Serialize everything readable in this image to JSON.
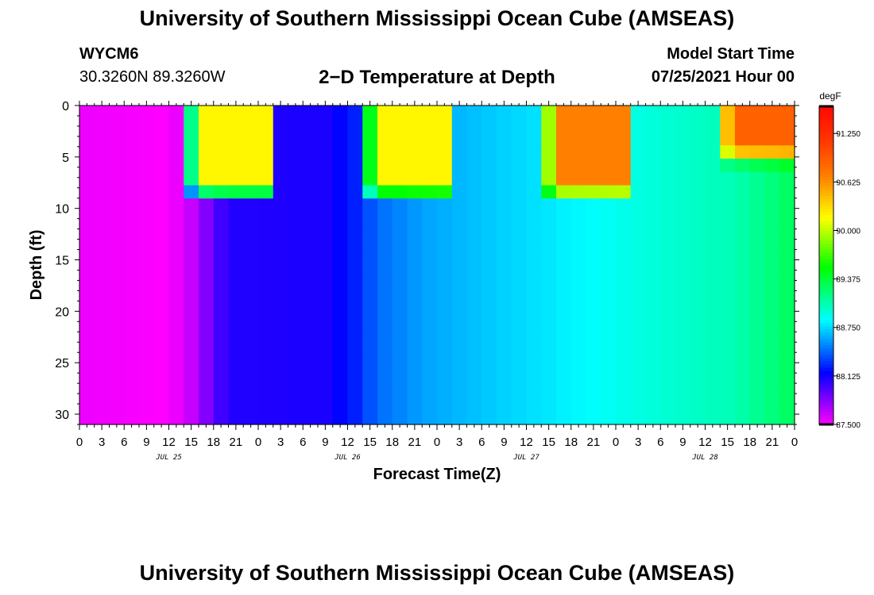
{
  "header": {
    "title": "University of Southern Mississippi Ocean Cube (AMSEAS)",
    "station": "WYCM6",
    "coords": "30.3260N  89.3260W",
    "subtitle": "2−D Temperature at Depth",
    "model_start_label": "Model Start Time",
    "model_start_value": "07/25/2021 Hour 00",
    "footer_title": "University of Southern Mississippi Ocean Cube (AMSEAS)"
  },
  "chart_data": {
    "type": "heatmap",
    "xlabel": "Forecast Time(Z)",
    "ylabel": "Depth (ft)",
    "x_unit": "forecast hour from 07/25/2021 00Z",
    "xlim": [
      0,
      96
    ],
    "ylim": [
      0,
      31
    ],
    "y_reversed": true,
    "x_ticks": [
      {
        "hour": 0,
        "label": "0"
      },
      {
        "hour": 3,
        "label": "3"
      },
      {
        "hour": 6,
        "label": "6"
      },
      {
        "hour": 9,
        "label": "9"
      },
      {
        "hour": 12,
        "label": "12"
      },
      {
        "hour": 15,
        "label": "15"
      },
      {
        "hour": 18,
        "label": "18"
      },
      {
        "hour": 21,
        "label": "21"
      },
      {
        "hour": 24,
        "label": "0"
      },
      {
        "hour": 27,
        "label": "3"
      },
      {
        "hour": 30,
        "label": "6"
      },
      {
        "hour": 33,
        "label": "9"
      },
      {
        "hour": 36,
        "label": "12"
      },
      {
        "hour": 39,
        "label": "15"
      },
      {
        "hour": 42,
        "label": "18"
      },
      {
        "hour": 45,
        "label": "21"
      },
      {
        "hour": 48,
        "label": "0"
      },
      {
        "hour": 51,
        "label": "3"
      },
      {
        "hour": 54,
        "label": "6"
      },
      {
        "hour": 57,
        "label": "9"
      },
      {
        "hour": 60,
        "label": "12"
      },
      {
        "hour": 63,
        "label": "15"
      },
      {
        "hour": 66,
        "label": "18"
      },
      {
        "hour": 69,
        "label": "21"
      },
      {
        "hour": 72,
        "label": "0"
      },
      {
        "hour": 75,
        "label": "3"
      },
      {
        "hour": 78,
        "label": "6"
      },
      {
        "hour": 81,
        "label": "9"
      },
      {
        "hour": 84,
        "label": "12"
      },
      {
        "hour": 87,
        "label": "15"
      },
      {
        "hour": 90,
        "label": "18"
      },
      {
        "hour": 93,
        "label": "21"
      },
      {
        "hour": 96,
        "label": "0"
      }
    ],
    "date_labels": [
      {
        "hour": 12,
        "label": "JUL 25"
      },
      {
        "hour": 36,
        "label": "JUL 26"
      },
      {
        "hour": 60,
        "label": "JUL 27"
      },
      {
        "hour": 84,
        "label": "JUL 28"
      }
    ],
    "y_ticks": [
      0,
      5,
      10,
      15,
      20,
      25,
      30
    ],
    "colorbar": {
      "unit": "degF",
      "min": 87.5,
      "max": 91.6,
      "tick_values": [
        87.5,
        88.125,
        88.75,
        89.375,
        90.0,
        90.625,
        91.25
      ],
      "tick_labels": [
        "87.500",
        "88.125",
        "88.750",
        "89.375",
        "90.000",
        "90.625",
        "91.250"
      ]
    },
    "bottom_temperature_by_hour": [
      {
        "hour": 0,
        "degF": 87.55
      },
      {
        "hour": 12,
        "degF": 87.5
      },
      {
        "hour": 15,
        "degF": 87.65
      },
      {
        "hour": 19,
        "degF": 88.0
      },
      {
        "hour": 21,
        "degF": 88.08
      },
      {
        "hour": 33,
        "degF": 88.1
      },
      {
        "hour": 37,
        "degF": 88.25
      },
      {
        "hour": 40,
        "degF": 88.45
      },
      {
        "hour": 46,
        "degF": 88.6
      },
      {
        "hour": 56,
        "degF": 88.72
      },
      {
        "hour": 62,
        "degF": 88.78
      },
      {
        "hour": 68,
        "degF": 88.85
      },
      {
        "hour": 80,
        "degF": 88.98
      },
      {
        "hour": 88,
        "degF": 89.05
      },
      {
        "hour": 96,
        "degF": 89.3
      }
    ],
    "warm_surface_layers": [
      {
        "start_hour": 14.5,
        "end_hour": 26.5,
        "peak_degF": 90.2,
        "max_depth_ft": 9.5
      },
      {
        "start_hour": 38.5,
        "end_hour": 50.5,
        "peak_degF": 90.2,
        "max_depth_ft": 9.5
      },
      {
        "start_hour": 62.5,
        "end_hour": 74.5,
        "peak_degF": 90.7,
        "max_depth_ft": 9.5
      },
      {
        "start_hour": 86.5,
        "end_hour": 96,
        "peak_degF": 90.9,
        "max_depth_ft": 5
      }
    ]
  }
}
